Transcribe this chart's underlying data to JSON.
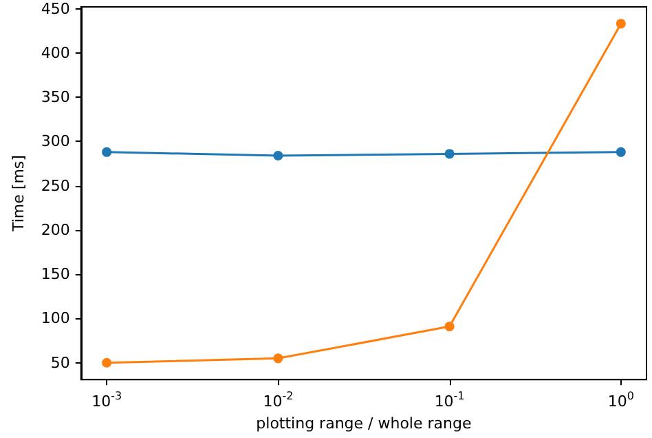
{
  "chart_data": {
    "type": "line",
    "xlabel": "plotting range / whole range",
    "ylabel": "Time [ms]",
    "log": "x",
    "x": [
      0.001,
      0.01,
      0.1,
      1
    ],
    "series": [
      {
        "color": "#1f77b4",
        "values": [
          288,
          284,
          286,
          288
        ]
      },
      {
        "color": "#ff7f0e",
        "values": [
          50,
          55,
          91,
          433
        ]
      }
    ],
    "xlim": [
      0.000708,
      1.41
    ],
    "xticks": [
      {
        "value": 0.001,
        "label": "10$^{-3}$"
      },
      {
        "value": 0.01,
        "label": "10$^{-2}$"
      },
      {
        "value": 0.1,
        "label": "10$^{-1}$"
      },
      {
        "value": 1,
        "label": "10$^{0}$"
      }
    ],
    "ylim": [
      31,
      452
    ],
    "yticks": [
      50,
      100,
      150,
      200,
      250,
      300,
      350,
      400,
      450
    ],
    "grid": false,
    "marker": "circle",
    "line_style": "solid"
  }
}
